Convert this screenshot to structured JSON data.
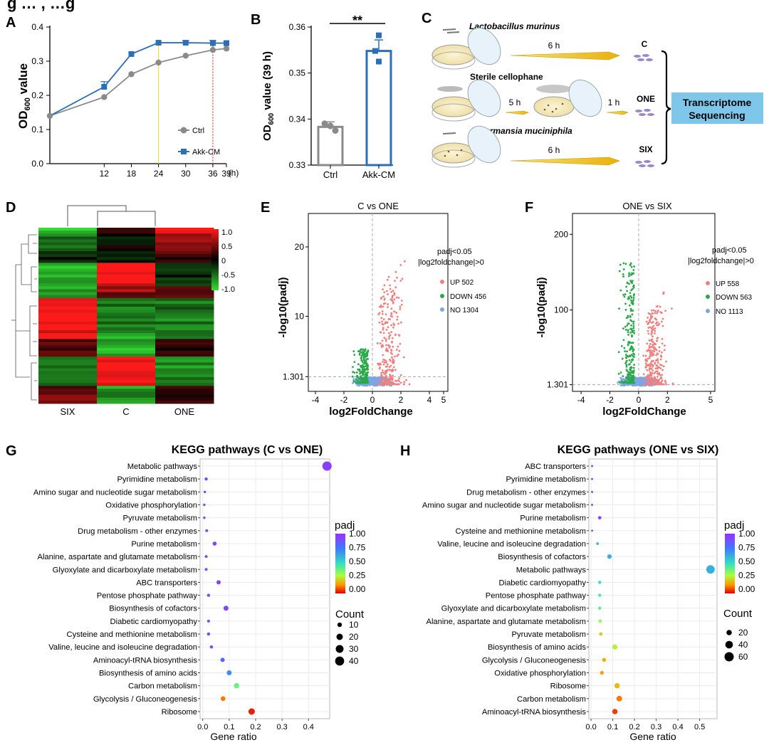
{
  "header": {
    "title_fragment": "g … , …g"
  },
  "panels": {
    "A": {
      "letter": "A"
    },
    "B": {
      "letter": "B"
    },
    "C": {
      "letter": "C"
    },
    "D": {
      "letter": "D"
    },
    "E": {
      "letter": "E"
    },
    "F": {
      "letter": "F"
    },
    "G": {
      "letter": "G"
    },
    "H": {
      "letter": "H"
    }
  },
  "colors": {
    "ctrl": "#8a8a8a",
    "akk": "#2d6fb5",
    "heat_red": "#ff1a1a",
    "heat_green": "#33dd33",
    "volcano_up": "#f08080",
    "volcano_down": "#2aa84a",
    "volcano_no": "#7aa6e8",
    "seq_box": "#7fc7ea",
    "arrow": "#f3c417"
  },
  "chart_data": [
    {
      "panel": "A",
      "type": "line",
      "title": "",
      "xlabel": "(h)",
      "ylabel_main": "OD",
      "ylabel_sub": "600",
      "ylabel_rest": " value",
      "x_ticks": [
        "12",
        "18",
        "24",
        "30",
        "36",
        "39"
      ],
      "x_tick_values": [
        12,
        18,
        24,
        30,
        36,
        39
      ],
      "y_ticks": [
        "0.0",
        "0.1",
        "0.2",
        "0.3",
        "0.4"
      ],
      "xlim": [
        0,
        39
      ],
      "ylim": [
        0,
        0.4
      ],
      "vlines": [
        24,
        36
      ],
      "series": [
        {
          "name": "Ctrl",
          "x": [
            0,
            12,
            18,
            24,
            30,
            36,
            39
          ],
          "values": [
            0.14,
            0.195,
            0.262,
            0.296,
            0.316,
            0.333,
            0.337
          ]
        },
        {
          "name": "Akk-CM",
          "x": [
            0,
            12,
            18,
            24,
            30,
            36,
            39
          ],
          "values": [
            0.14,
            0.225,
            0.321,
            0.354,
            0.354,
            0.353,
            0.353
          ]
        }
      ]
    },
    {
      "panel": "B",
      "type": "bar",
      "categories": [
        "Ctrl",
        "Akk-CM"
      ],
      "values": [
        0.3383,
        0.3548
      ],
      "points": [
        [
          0.339,
          0.3375,
          0.3385
        ],
        [
          0.3582,
          0.3548,
          0.3525
        ]
      ],
      "ylabel_main": "OD",
      "ylabel_sub": "600",
      "ylabel_rest": " value (39 h)",
      "y_ticks": [
        "0.33",
        "0.34",
        "0.35",
        "0.36"
      ],
      "ylim": [
        0.33,
        0.36
      ],
      "significance": "**"
    },
    {
      "panel": "D",
      "type": "heatmap",
      "columns": [
        "SIX",
        "C",
        "ONE"
      ],
      "legend_ticks": [
        "1.0",
        "0.5",
        "0",
        "-0.5",
        "-1.0"
      ],
      "scale": [
        -1.0,
        1.0
      ]
    },
    {
      "panel": "E",
      "type": "scatter",
      "title": "C vs ONE",
      "xlabel": "log2FoldChange",
      "ylabel": "-log10(padj)",
      "x_ticks": [
        "-4",
        "-2",
        "0",
        "2",
        "4",
        "5"
      ],
      "x_tick_values": [
        -4,
        -2,
        0,
        2,
        4,
        5
      ],
      "y_ticks": [
        "1.301",
        "10",
        "20"
      ],
      "y_tick_values": [
        1.301,
        10,
        20
      ],
      "xlim": [
        -4.5,
        5.3
      ],
      "ylim": [
        0,
        24
      ],
      "threshold_text": [
        "padj<0.05",
        "|log2foldchange|>0"
      ],
      "groups": [
        {
          "name": "UP",
          "count": 502,
          "label": "UP 502"
        },
        {
          "name": "DOWN",
          "count": 456,
          "label": "DOWN 456"
        },
        {
          "name": "NO",
          "count": 1304,
          "label": "NO 1304"
        }
      ]
    },
    {
      "panel": "F",
      "type": "scatter",
      "title": "ONE vs SIX",
      "xlabel": "log2FoldChange",
      "ylabel": "-log10(padj)",
      "x_ticks": [
        "-4",
        "-2",
        "0",
        "2",
        "5"
      ],
      "x_tick_values": [
        -4,
        -2,
        0,
        2,
        5
      ],
      "y_ticks": [
        "1.301",
        "100",
        "200"
      ],
      "y_tick_values": [
        1.301,
        100,
        200
      ],
      "xlim": [
        -4.6,
        5.3
      ],
      "ylim": [
        0,
        220
      ],
      "threshold_text": [
        "padj<0.05",
        "|log2foldchange|>0"
      ],
      "groups": [
        {
          "name": "UP",
          "count": 558,
          "label": "UP 558"
        },
        {
          "name": "DOWN",
          "count": 563,
          "label": "DOWN 563"
        },
        {
          "name": "NO",
          "count": 1113,
          "label": "NO 1113"
        }
      ]
    },
    {
      "panel": "G",
      "type": "scatter",
      "title": "KEGG pathways (C vs ONE)",
      "xlabel": "Gene ratio",
      "x_ticks": [
        "0.0",
        "0.1",
        "0.2",
        "0.3",
        "0.4"
      ],
      "x_tick_values": [
        0,
        0.1,
        0.2,
        0.3,
        0.4
      ],
      "xlim": [
        -0.01,
        0.48
      ],
      "legend_title_color": "padj",
      "color_ticks": [
        "1.00",
        "0.75",
        "0.50",
        "0.25",
        "0.00"
      ],
      "legend_title_size": "Count",
      "size_ticks": [
        10,
        20,
        30,
        40
      ],
      "pathways": [
        {
          "name": "Metabolic pathways",
          "ratio": 0.47,
          "padj": 0.95,
          "count": 42
        },
        {
          "name": "Pyrimidine metabolism",
          "ratio": 0.013,
          "padj": 0.9,
          "count": 5
        },
        {
          "name": "Amino sugar and nucleotide sugar metabolism",
          "ratio": 0.008,
          "padj": 0.9,
          "count": 3
        },
        {
          "name": "Oxidative phosphorylation",
          "ratio": 0.006,
          "padj": 0.9,
          "count": 3
        },
        {
          "name": "Pyruvate metabolism",
          "ratio": 0.006,
          "padj": 0.9,
          "count": 3
        },
        {
          "name": "Drug metabolism - other enzymes",
          "ratio": 0.015,
          "padj": 0.9,
          "count": 4
        },
        {
          "name": "Purine metabolism",
          "ratio": 0.045,
          "padj": 0.92,
          "count": 8
        },
        {
          "name": "Alanine, aspartate and glutamate metabolism",
          "ratio": 0.013,
          "padj": 0.9,
          "count": 4
        },
        {
          "name": "Glyoxylate and dicarboxylate metabolism",
          "ratio": 0.013,
          "padj": 0.9,
          "count": 4
        },
        {
          "name": "ABC transporters",
          "ratio": 0.06,
          "padj": 0.93,
          "count": 9
        },
        {
          "name": "Pentose phosphate pathway",
          "ratio": 0.022,
          "padj": 0.88,
          "count": 5
        },
        {
          "name": "Biosynthesis of cofactors",
          "ratio": 0.088,
          "padj": 0.93,
          "count": 12
        },
        {
          "name": "Diabetic cardiomyopathy",
          "ratio": 0.022,
          "padj": 0.9,
          "count": 4
        },
        {
          "name": "Cysteine and methionine metabolism",
          "ratio": 0.022,
          "padj": 0.9,
          "count": 5
        },
        {
          "name": "Valine, leucine and isoleucine degradation",
          "ratio": 0.033,
          "padj": 0.92,
          "count": 5
        },
        {
          "name": "Aminoacyl-tRNA biosynthesis",
          "ratio": 0.075,
          "padj": 0.83,
          "count": 9
        },
        {
          "name": "Biosynthesis of amino acids",
          "ratio": 0.1,
          "padj": 0.7,
          "count": 12
        },
        {
          "name": "Carbon metabolism",
          "ratio": 0.128,
          "padj": 0.4,
          "count": 14
        },
        {
          "name": "Glycolysis / Gluconeogenesis",
          "ratio": 0.077,
          "padj": 0.12,
          "count": 11
        },
        {
          "name": "Ribosome",
          "ratio": 0.185,
          "padj": 0.03,
          "count": 20
        }
      ]
    },
    {
      "panel": "H",
      "type": "scatter",
      "title": "KEGG pathways (ONE vs SIX)",
      "xlabel": "Gene ratio",
      "x_ticks": [
        "0.0",
        "0.1",
        "0.2",
        "0.3",
        "0.4",
        "0.5"
      ],
      "x_tick_values": [
        0,
        0.1,
        0.2,
        0.3,
        0.4,
        0.5
      ],
      "xlim": [
        -0.01,
        0.58
      ],
      "legend_title_color": "padj",
      "color_ticks": [
        "1.00",
        "0.75",
        "0.50",
        "0.25",
        "0.00"
      ],
      "legend_title_size": "Count",
      "size_ticks": [
        20,
        40,
        60
      ],
      "pathways": [
        {
          "name": "ABC transporters",
          "ratio": 0.005,
          "padj": 0.9,
          "count": 3
        },
        {
          "name": "Pyrimidine metabolism",
          "ratio": 0.005,
          "padj": 0.9,
          "count": 3
        },
        {
          "name": "Drug metabolism - other enzymes",
          "ratio": 0.005,
          "padj": 0.9,
          "count": 3
        },
        {
          "name": "Amino sugar and nucleotide sugar metabolism",
          "ratio": 0.005,
          "padj": 0.9,
          "count": 3
        },
        {
          "name": "Purine metabolism",
          "ratio": 0.04,
          "padj": 0.93,
          "count": 8
        },
        {
          "name": "Cysteine and methionine metabolism",
          "ratio": 0.005,
          "padj": 0.9,
          "count": 3
        },
        {
          "name": "Valine, leucine and isoleucine degradation",
          "ratio": 0.03,
          "padj": 0.6,
          "count": 5
        },
        {
          "name": "Biosynthesis of cofactors",
          "ratio": 0.085,
          "padj": 0.62,
          "count": 14
        },
        {
          "name": "Metabolic pathways",
          "ratio": 0.55,
          "padj": 0.62,
          "count": 50
        },
        {
          "name": "Diabetic cardiomyopathy",
          "ratio": 0.04,
          "padj": 0.5,
          "count": 7
        },
        {
          "name": "Pentose phosphate pathway",
          "ratio": 0.04,
          "padj": 0.45,
          "count": 7
        },
        {
          "name": "Glyoxylate and dicarboxylate metabolism",
          "ratio": 0.04,
          "padj": 0.42,
          "count": 7
        },
        {
          "name": "Alanine, aspartate and glutamate metabolism",
          "ratio": 0.042,
          "padj": 0.33,
          "count": 8
        },
        {
          "name": "Pyruvate metabolism",
          "ratio": 0.045,
          "padj": 0.22,
          "count": 8
        },
        {
          "name": "Biosynthesis of amino acids",
          "ratio": 0.11,
          "padj": 0.28,
          "count": 18
        },
        {
          "name": "Glycolysis / Gluconeogenesis",
          "ratio": 0.06,
          "padj": 0.18,
          "count": 11
        },
        {
          "name": "Oxidative phosphorylation",
          "ratio": 0.05,
          "padj": 0.15,
          "count": 10
        },
        {
          "name": "Ribosome",
          "ratio": 0.12,
          "padj": 0.2,
          "count": 20
        },
        {
          "name": "Carbon metabolism",
          "ratio": 0.13,
          "padj": 0.12,
          "count": 22
        },
        {
          "name": "Aminoacyl-tRNA biosynthesis",
          "ratio": 0.11,
          "padj": 0.06,
          "count": 20
        }
      ]
    }
  ],
  "diagram_C": {
    "organism_1": "Lactobacillus murinus",
    "material": "Sterile cellophane",
    "organism_2": "Akkermansia muciniphila",
    "time_top": "6 h",
    "time_mid_1": "5 h",
    "time_mid_2": "1 h",
    "time_bottom": "6 h",
    "group_top": "C",
    "group_mid": "ONE",
    "group_bottom": "SIX",
    "output_line1": "Transcriptome",
    "output_line2": "Sequencing"
  }
}
